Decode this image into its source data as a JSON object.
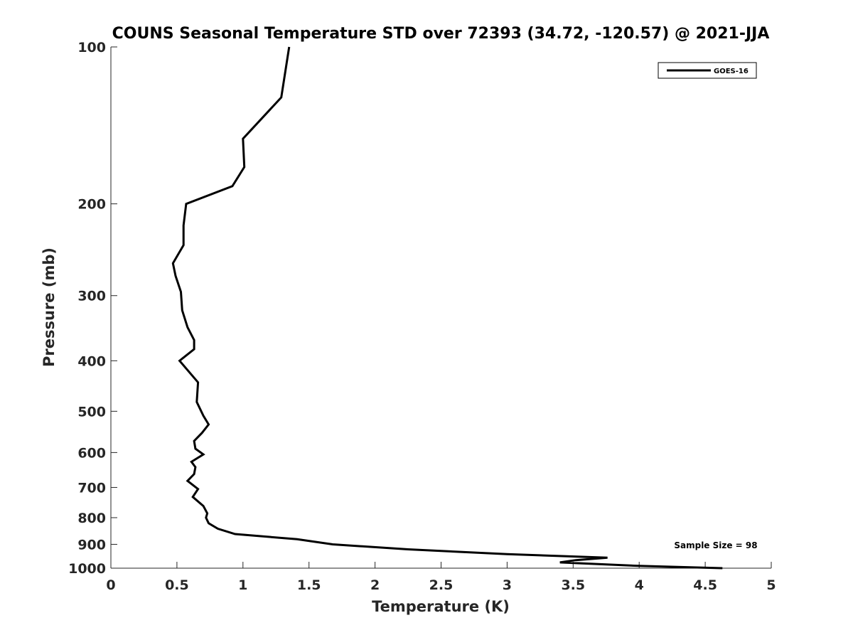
{
  "chart_data": {
    "type": "line",
    "title": "COUNS Seasonal Temperature STD over 72393 (34.72, -120.57) @ 2021-JJA",
    "xlabel": "Temperature (K)",
    "ylabel": "Pressure (mb)",
    "xlim": [
      0,
      5
    ],
    "ylim": [
      100,
      1000
    ],
    "y_scale": "log",
    "y_reversed": true,
    "grid": false,
    "legend_position": "top-right",
    "x_ticks": [
      0,
      0.5,
      1,
      1.5,
      2,
      2.5,
      3,
      3.5,
      4,
      4.5,
      5
    ],
    "x_tick_labels": [
      "0",
      "0.5",
      "1",
      "1.5",
      "2",
      "2.5",
      "3",
      "3.5",
      "4",
      "4.5",
      "5"
    ],
    "y_ticks": [
      100,
      200,
      300,
      400,
      500,
      600,
      700,
      800,
      900,
      1000
    ],
    "y_tick_labels": [
      "100",
      "200",
      "300",
      "400",
      "500",
      "600",
      "700",
      "800",
      "900",
      "1000"
    ],
    "series": [
      {
        "name": "GOES-16",
        "color": "#000000",
        "points": [
          [
            1.35,
            100
          ],
          [
            1.29,
            125
          ],
          [
            1.0,
            150
          ],
          [
            1.01,
            170
          ],
          [
            0.92,
            185
          ],
          [
            0.57,
            200
          ],
          [
            0.55,
            220
          ],
          [
            0.55,
            240
          ],
          [
            0.47,
            260
          ],
          [
            0.49,
            275
          ],
          [
            0.53,
            295
          ],
          [
            0.54,
            320
          ],
          [
            0.58,
            345
          ],
          [
            0.63,
            365
          ],
          [
            0.63,
            380
          ],
          [
            0.52,
            400
          ],
          [
            0.66,
            440
          ],
          [
            0.65,
            480
          ],
          [
            0.7,
            510
          ],
          [
            0.74,
            530
          ],
          [
            0.69,
            550
          ],
          [
            0.63,
            570
          ],
          [
            0.64,
            590
          ],
          [
            0.7,
            605
          ],
          [
            0.61,
            625
          ],
          [
            0.64,
            640
          ],
          [
            0.63,
            660
          ],
          [
            0.58,
            680
          ],
          [
            0.66,
            705
          ],
          [
            0.62,
            730
          ],
          [
            0.7,
            760
          ],
          [
            0.73,
            785
          ],
          [
            0.72,
            800
          ],
          [
            0.74,
            820
          ],
          [
            0.81,
            840
          ],
          [
            0.94,
            860
          ],
          [
            1.41,
            880
          ],
          [
            1.68,
            900
          ],
          [
            2.25,
            920
          ],
          [
            3.0,
            940
          ],
          [
            3.76,
            955
          ],
          [
            3.52,
            965
          ],
          [
            3.4,
            975
          ],
          [
            4.0,
            990
          ],
          [
            4.63,
            1000
          ]
        ]
      }
    ],
    "annotation": "Sample Size = 98"
  }
}
